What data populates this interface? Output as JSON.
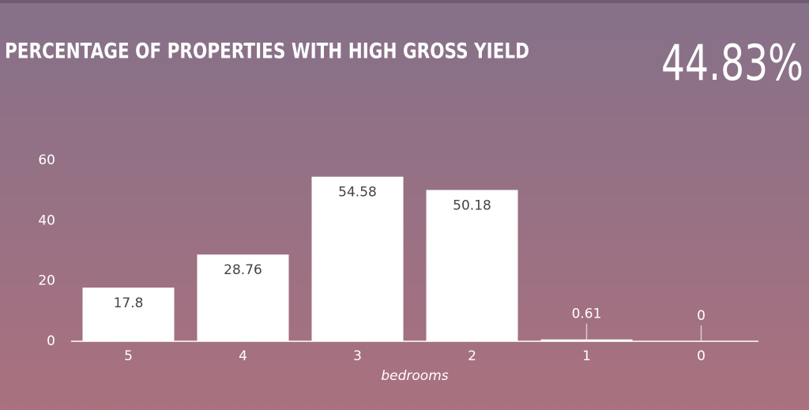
{
  "chart_data": {
    "type": "bar",
    "title": "PERCENTAGE OF PROPERTIES WITH HIGH GROSS YIELD",
    "kpi": "44.83%",
    "categories": [
      "5",
      "4",
      "3",
      "2",
      "1",
      "0"
    ],
    "values": [
      17.8,
      28.76,
      54.58,
      50.18,
      0.61,
      0
    ],
    "color": "#ffffff",
    "ylim": [
      0,
      60
    ],
    "yticks": [
      0,
      20,
      40,
      60
    ],
    "xlabel": "bedrooms"
  }
}
